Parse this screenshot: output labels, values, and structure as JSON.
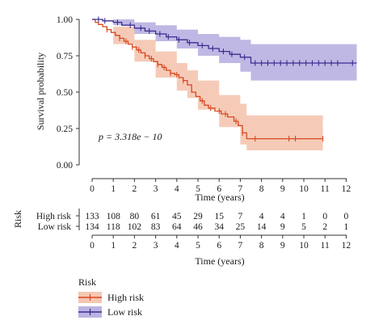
{
  "chart_data": {
    "type": "line",
    "subtype": "kaplan-meier",
    "title": "",
    "ylabel": "Survival probability",
    "xlabel": "Time (years)",
    "xlim": [
      0,
      12.5
    ],
    "ylim": [
      0,
      1
    ],
    "xticks": [
      0,
      1,
      2,
      3,
      4,
      5,
      6,
      7,
      8,
      9,
      10,
      11,
      12
    ],
    "yticks": [
      "0.00",
      "0.25",
      "0.50",
      "0.75",
      "1.00"
    ],
    "grid": false,
    "annotation": "p = 3.318e − 10",
    "series": [
      {
        "name": "High risk",
        "color": "#d9471f",
        "band_color": "#f1b9a0",
        "steps": [
          [
            0,
            1.0
          ],
          [
            0.15,
            0.98
          ],
          [
            0.3,
            0.965
          ],
          [
            0.5,
            0.95
          ],
          [
            0.7,
            0.93
          ],
          [
            0.9,
            0.91
          ],
          [
            1.1,
            0.89
          ],
          [
            1.3,
            0.87
          ],
          [
            1.5,
            0.85
          ],
          [
            1.7,
            0.83
          ],
          [
            1.9,
            0.81
          ],
          [
            2.1,
            0.79
          ],
          [
            2.3,
            0.77
          ],
          [
            2.5,
            0.75
          ],
          [
            2.7,
            0.73
          ],
          [
            2.9,
            0.71
          ],
          [
            3.1,
            0.69
          ],
          [
            3.3,
            0.67
          ],
          [
            3.5,
            0.65
          ],
          [
            3.7,
            0.63
          ],
          [
            3.9,
            0.62
          ],
          [
            4.1,
            0.6
          ],
          [
            4.3,
            0.58
          ],
          [
            4.5,
            0.55
          ],
          [
            4.7,
            0.5
          ],
          [
            4.9,
            0.47
          ],
          [
            5.1,
            0.44
          ],
          [
            5.3,
            0.41
          ],
          [
            5.5,
            0.39
          ],
          [
            5.8,
            0.37
          ],
          [
            6.1,
            0.35
          ],
          [
            6.4,
            0.33
          ],
          [
            6.7,
            0.3
          ],
          [
            6.9,
            0.27
          ],
          [
            7.1,
            0.22
          ],
          [
            7.3,
            0.18
          ],
          [
            10.9,
            0.18
          ]
        ],
        "ci_upper": [
          [
            0,
            1.0
          ],
          [
            1,
            0.95
          ],
          [
            2,
            0.86
          ],
          [
            3,
            0.78
          ],
          [
            4,
            0.7
          ],
          [
            4.5,
            0.65
          ],
          [
            5,
            0.58
          ],
          [
            6,
            0.48
          ],
          [
            7,
            0.42
          ],
          [
            7.3,
            0.34
          ],
          [
            10.9,
            0.34
          ]
        ],
        "ci_lower": [
          [
            0,
            1.0
          ],
          [
            1,
            0.83
          ],
          [
            2,
            0.71
          ],
          [
            3,
            0.6
          ],
          [
            4,
            0.51
          ],
          [
            4.5,
            0.46
          ],
          [
            5,
            0.38
          ],
          [
            6,
            0.26
          ],
          [
            7,
            0.14
          ],
          [
            7.3,
            0.1
          ],
          [
            10.9,
            0.1
          ]
        ],
        "censor_times": [
          0.7,
          1.3,
          1.6,
          1.9,
          2.2,
          2.5,
          2.8,
          3.1,
          3.4,
          3.7,
          4.0,
          4.3,
          5.2,
          5.6,
          6.0,
          6.3,
          6.8,
          7.1,
          7.7,
          9.3,
          9.6,
          10.9
        ]
      },
      {
        "name": "Low risk",
        "color": "#3b2d8f",
        "band_color": "#a9a0db",
        "steps": [
          [
            0,
            1.0
          ],
          [
            0.5,
            0.99
          ],
          [
            1.0,
            0.98
          ],
          [
            1.4,
            0.96
          ],
          [
            2.0,
            0.94
          ],
          [
            2.5,
            0.92
          ],
          [
            3.0,
            0.9
          ],
          [
            3.5,
            0.88
          ],
          [
            4.0,
            0.86
          ],
          [
            4.5,
            0.84
          ],
          [
            5.0,
            0.82
          ],
          [
            5.5,
            0.8
          ],
          [
            6.0,
            0.78
          ],
          [
            6.5,
            0.76
          ],
          [
            7.0,
            0.74
          ],
          [
            7.5,
            0.7
          ],
          [
            12.5,
            0.7
          ]
        ],
        "ci_upper": [
          [
            0,
            1.0
          ],
          [
            1,
            1.0
          ],
          [
            2,
            0.98
          ],
          [
            3,
            0.96
          ],
          [
            4,
            0.93
          ],
          [
            5,
            0.9
          ],
          [
            6,
            0.88
          ],
          [
            7,
            0.86
          ],
          [
            7.5,
            0.83
          ],
          [
            12.5,
            0.83
          ]
        ],
        "ci_lower": [
          [
            0,
            1.0
          ],
          [
            1,
            0.96
          ],
          [
            2,
            0.9
          ],
          [
            3,
            0.85
          ],
          [
            4,
            0.8
          ],
          [
            5,
            0.75
          ],
          [
            6,
            0.7
          ],
          [
            7,
            0.64
          ],
          [
            7.5,
            0.58
          ],
          [
            12.5,
            0.58
          ]
        ],
        "censor_times": [
          0.3,
          0.6,
          1.2,
          1.8,
          2.3,
          2.7,
          3.2,
          3.6,
          4.1,
          4.6,
          5.2,
          5.7,
          6.2,
          6.6,
          7.2,
          7.7,
          8.0,
          8.3,
          8.6,
          8.9,
          9.2,
          9.5,
          9.8,
          10.1,
          10.4,
          10.7,
          11.0,
          11.3,
          11.6,
          12.3
        ]
      }
    ]
  },
  "risk_table": {
    "title": "Risk",
    "xlabel": "Time (years)",
    "times": [
      0,
      1,
      2,
      3,
      4,
      5,
      6,
      7,
      8,
      9,
      10,
      11,
      12
    ],
    "rows": [
      {
        "label": "High risk",
        "counts": [
          133,
          108,
          80,
          61,
          45,
          29,
          15,
          7,
          4,
          4,
          1,
          0,
          0
        ]
      },
      {
        "label": "Low risk",
        "counts": [
          134,
          118,
          102,
          83,
          64,
          46,
          34,
          25,
          14,
          9,
          5,
          2,
          1
        ]
      }
    ]
  },
  "legend": {
    "title": "Risk",
    "items": [
      {
        "label": "High risk",
        "color": "#d9471f",
        "fill": "#f1b9a0"
      },
      {
        "label": "Low risk",
        "color": "#3b2d8f",
        "fill": "#a9a0db"
      }
    ]
  }
}
